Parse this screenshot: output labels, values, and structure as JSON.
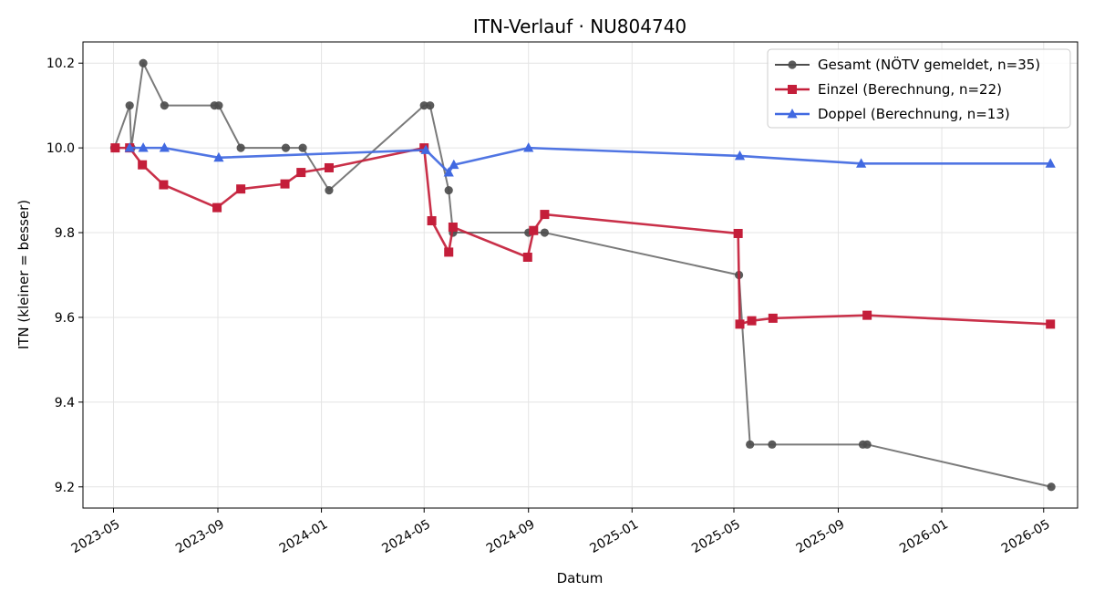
{
  "chart_data": {
    "type": "line",
    "title": "ITN-Verlauf · NU804740",
    "xlabel": "Datum",
    "ylabel": "ITN  (kleiner = besser)",
    "xlim": [
      "2023-03-26",
      "2026-06-10"
    ],
    "ylim": [
      9.15,
      10.25
    ],
    "x_ticks": [
      "2023-05-01",
      "2023-09-01",
      "2024-01-01",
      "2024-05-01",
      "2024-09-01",
      "2025-01-01",
      "2025-05-01",
      "2025-09-01",
      "2026-01-01",
      "2026-05-01"
    ],
    "x_tick_labels": [
      "2023-05",
      "2023-09",
      "2024-01",
      "2024-05",
      "2024-09",
      "2025-01",
      "2025-05",
      "2025-09",
      "2026-01",
      "2026-05"
    ],
    "y_ticks": [
      9.2,
      9.4,
      9.6,
      9.8,
      10.0,
      10.2
    ],
    "y_tick_labels": [
      "9.2",
      "9.4",
      "9.6",
      "9.8",
      "10.0",
      "10.2"
    ],
    "grid": true,
    "legend_position": "top-right",
    "series": [
      {
        "name": "Gesamt (NÖTV gemeldet, n=35)",
        "color": "#4d4d4d",
        "marker": "circle",
        "points": [
          [
            "2023-05-02",
            10.0
          ],
          [
            "2023-05-20",
            10.1
          ],
          [
            "2023-05-22",
            10.0
          ],
          [
            "2023-06-05",
            10.2
          ],
          [
            "2023-06-30",
            10.1
          ],
          [
            "2023-08-28",
            10.1
          ],
          [
            "2023-09-02",
            10.1
          ],
          [
            "2023-09-28",
            10.0
          ],
          [
            "2023-11-20",
            10.0
          ],
          [
            "2023-12-10",
            10.0
          ],
          [
            "2024-01-10",
            9.9
          ],
          [
            "2024-05-01",
            10.1
          ],
          [
            "2024-05-08",
            10.1
          ],
          [
            "2024-05-30",
            9.9
          ],
          [
            "2024-06-04",
            9.8
          ],
          [
            "2024-09-01",
            9.8
          ],
          [
            "2024-09-20",
            9.8
          ],
          [
            "2025-05-07",
            9.7
          ],
          [
            "2025-05-20",
            9.3
          ],
          [
            "2025-06-15",
            9.3
          ],
          [
            "2025-09-30",
            9.3
          ],
          [
            "2025-10-05",
            9.3
          ],
          [
            "2026-05-10",
            9.2
          ]
        ]
      },
      {
        "name": "Einzel (Berechnung, n=22)",
        "color": "#c41e3a",
        "marker": "square",
        "points": [
          [
            "2023-05-03",
            10.0
          ],
          [
            "2023-05-20",
            10.0
          ],
          [
            "2023-06-04",
            9.96
          ],
          [
            "2023-06-29",
            9.913
          ],
          [
            "2023-08-31",
            9.859
          ],
          [
            "2023-09-28",
            9.903
          ],
          [
            "2023-11-19",
            9.915
          ],
          [
            "2023-12-08",
            9.942
          ],
          [
            "2024-01-10",
            9.953
          ],
          [
            "2024-05-01",
            10.0
          ],
          [
            "2024-05-10",
            9.828
          ],
          [
            "2024-05-30",
            9.754
          ],
          [
            "2024-06-04",
            9.813
          ],
          [
            "2024-08-31",
            9.742
          ],
          [
            "2024-09-07",
            9.805
          ],
          [
            "2024-09-20",
            9.843
          ],
          [
            "2025-05-06",
            9.798
          ],
          [
            "2025-05-08",
            9.584
          ],
          [
            "2025-05-22",
            9.592
          ],
          [
            "2025-06-16",
            9.598
          ],
          [
            "2025-10-05",
            9.605
          ],
          [
            "2026-05-09",
            9.584
          ]
        ]
      },
      {
        "name": "Doppel (Berechnung, n=13)",
        "color": "#4169e1",
        "marker": "triangle",
        "points": [
          [
            "2023-05-20",
            10.0
          ],
          [
            "2023-06-05",
            10.0
          ],
          [
            "2023-06-30",
            10.0
          ],
          [
            "2023-09-02",
            9.977
          ],
          [
            "2024-05-03",
            9.995
          ],
          [
            "2024-05-30",
            9.942
          ],
          [
            "2024-06-05",
            9.96
          ],
          [
            "2024-09-01",
            10.0
          ],
          [
            "2025-05-08",
            9.981
          ],
          [
            "2025-09-28",
            9.963
          ],
          [
            "2026-05-09",
            9.963
          ]
        ]
      }
    ]
  }
}
